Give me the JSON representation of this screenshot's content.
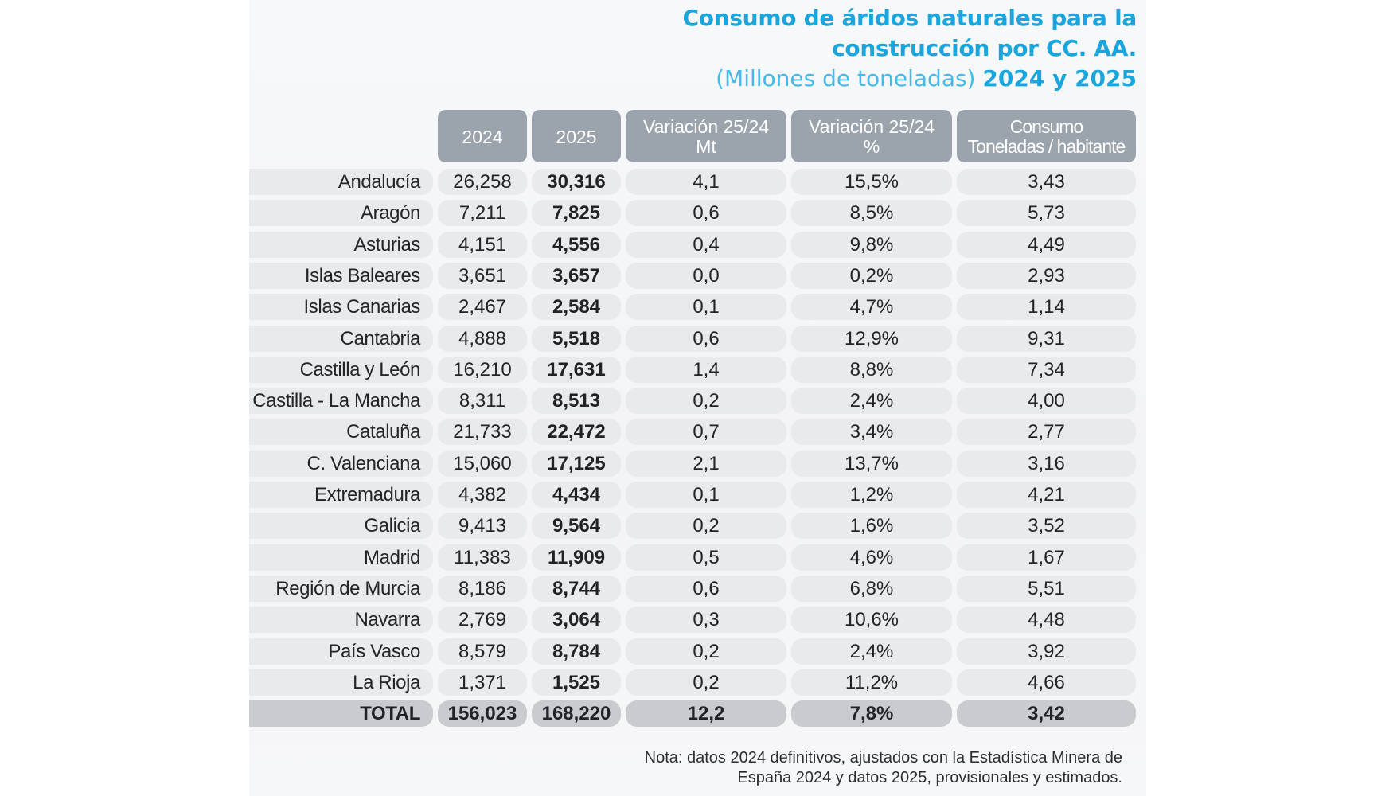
{
  "title": {
    "line1": "Consumo de áridos naturales para la",
    "line2": "construcción por CC. AA.",
    "subtitle_units": "(Millones de toneladas)",
    "subtitle_years": "2024 y 2025"
  },
  "colors": {
    "title": "#1aa5dc",
    "header_bg": "#9ba4ac",
    "row_bg": "#e9eaec",
    "total_bg": "#c9cbce"
  },
  "chart_data": {
    "type": "table",
    "columns": [
      [
        "",
        ""
      ],
      [
        "2024"
      ],
      [
        "2025"
      ],
      [
        "Variación 25/24",
        "Mt"
      ],
      [
        "Variación 25/24",
        "%"
      ],
      [
        "Consumo",
        "Toneladas / habitante"
      ]
    ],
    "rows": [
      {
        "region": "Andalucía",
        "y2024": "26,258",
        "y2025": "30,316",
        "var_mt": "4,1",
        "var_pct": "15,5%",
        "per_capita": "3,43"
      },
      {
        "region": "Aragón",
        "y2024": "7,211",
        "y2025": "7,825",
        "var_mt": "0,6",
        "var_pct": "8,5%",
        "per_capita": "5,73"
      },
      {
        "region": "Asturias",
        "y2024": "4,151",
        "y2025": "4,556",
        "var_mt": "0,4",
        "var_pct": "9,8%",
        "per_capita": "4,49"
      },
      {
        "region": "Islas Baleares",
        "y2024": "3,651",
        "y2025": "3,657",
        "var_mt": "0,0",
        "var_pct": "0,2%",
        "per_capita": "2,93"
      },
      {
        "region": "Islas Canarias",
        "y2024": "2,467",
        "y2025": "2,584",
        "var_mt": "0,1",
        "var_pct": "4,7%",
        "per_capita": "1,14"
      },
      {
        "region": "Cantabria",
        "y2024": "4,888",
        "y2025": "5,518",
        "var_mt": "0,6",
        "var_pct": "12,9%",
        "per_capita": "9,31"
      },
      {
        "region": "Castilla y León",
        "y2024": "16,210",
        "y2025": "17,631",
        "var_mt": "1,4",
        "var_pct": "8,8%",
        "per_capita": "7,34"
      },
      {
        "region": "Castilla - La Mancha",
        "y2024": "8,311",
        "y2025": "8,513",
        "var_mt": "0,2",
        "var_pct": "2,4%",
        "per_capita": "4,00"
      },
      {
        "region": "Cataluña",
        "y2024": "21,733",
        "y2025": "22,472",
        "var_mt": "0,7",
        "var_pct": "3,4%",
        "per_capita": "2,77"
      },
      {
        "region": "C. Valenciana",
        "y2024": "15,060",
        "y2025": "17,125",
        "var_mt": "2,1",
        "var_pct": "13,7%",
        "per_capita": "3,16"
      },
      {
        "region": "Extremadura",
        "y2024": "4,382",
        "y2025": "4,434",
        "var_mt": "0,1",
        "var_pct": "1,2%",
        "per_capita": "4,21"
      },
      {
        "region": "Galicia",
        "y2024": "9,413",
        "y2025": "9,564",
        "var_mt": "0,2",
        "var_pct": "1,6%",
        "per_capita": "3,52"
      },
      {
        "region": "Madrid",
        "y2024": "11,383",
        "y2025": "11,909",
        "var_mt": "0,5",
        "var_pct": "4,6%",
        "per_capita": "1,67"
      },
      {
        "region": "Región de Murcia",
        "y2024": "8,186",
        "y2025": "8,744",
        "var_mt": "0,6",
        "var_pct": "6,8%",
        "per_capita": "5,51"
      },
      {
        "region": "Navarra",
        "y2024": "2,769",
        "y2025": "3,064",
        "var_mt": "0,3",
        "var_pct": "10,6%",
        "per_capita": "4,48"
      },
      {
        "region": "País Vasco",
        "y2024": "8,579",
        "y2025": "8,784",
        "var_mt": "0,2",
        "var_pct": "2,4%",
        "per_capita": "3,92"
      },
      {
        "region": "La Rioja",
        "y2024": "1,371",
        "y2025": "1,525",
        "var_mt": "0,2",
        "var_pct": "11,2%",
        "per_capita": "4,66"
      }
    ],
    "total": {
      "region": "TOTAL",
      "y2024": "156,023",
      "y2025": "168,220",
      "var_mt": "12,2",
      "var_pct": "7,8%",
      "per_capita": "3,42"
    }
  },
  "note": {
    "line1": "Nota: datos 2024 definitivos, ajustados con la Estadística Minera de",
    "line2": "España 2024 y datos 2025, provisionales y estimados."
  }
}
